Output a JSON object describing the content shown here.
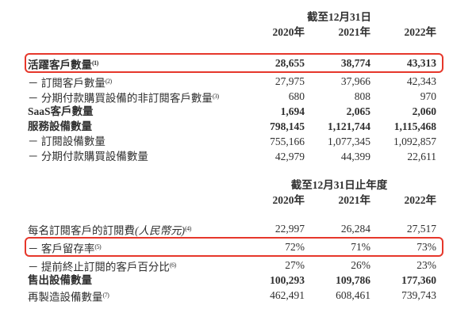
{
  "colors": {
    "highlight_box": "#e6372b",
    "text": "#2f2f2f",
    "background": "#ffffff"
  },
  "table1": {
    "period_header": "截至12月31日",
    "years": [
      "2020年",
      "2021年",
      "2022年"
    ],
    "rows": [
      {
        "label": "活躍客戶數量",
        "sup": "(1)",
        "values": [
          "28,655",
          "38,774",
          "43,313"
        ]
      },
      {
        "label": "－ 訂閱客戶數量",
        "sup": "(2)",
        "values": [
          "27,975",
          "37,966",
          "42,343"
        ]
      },
      {
        "label": "－ 分期付款購買設備的非訂閱客戶數量",
        "sup": "(3)",
        "values": [
          "680",
          "808",
          "970"
        ]
      },
      {
        "label": "SaaS客戶數量",
        "sup": "",
        "values": [
          "1,694",
          "2,065",
          "2,060"
        ]
      },
      {
        "label": "服務設備數量",
        "sup": "",
        "values": [
          "798,145",
          "1,121,744",
          "1,115,468"
        ]
      },
      {
        "label": "－ 訂閱設備數量",
        "sup": "",
        "values": [
          "755,166",
          "1,077,345",
          "1,092,857"
        ]
      },
      {
        "label": "－ 分期付款購買設備數量",
        "sup": "",
        "values": [
          "42,979",
          "44,399",
          "22,611"
        ]
      }
    ]
  },
  "table2": {
    "period_header": "截至12月31日止年度",
    "years": [
      "2020年",
      "2021年",
      "2022年"
    ],
    "rows": [
      {
        "label": "每名訂閱客戶的訂閱費",
        "note": "(人民幣元)",
        "sup": "(4)",
        "values": [
          "22,997",
          "26,284",
          "27,517"
        ]
      },
      {
        "label": "－ 客戶留存率",
        "sup": "(5)",
        "values": [
          "72%",
          "71%",
          "73%"
        ]
      },
      {
        "label": "－ 提前終止訂閱的客戶百分比",
        "sup": "(6)",
        "values": [
          "27%",
          "26%",
          "23%"
        ]
      },
      {
        "label": "售出設備數量",
        "sup": "",
        "values": [
          "100,293",
          "109,786",
          "177,360"
        ]
      },
      {
        "label": "再製造設備數量",
        "sup": "(7)",
        "values": [
          "462,491",
          "608,461",
          "739,743"
        ]
      }
    ]
  }
}
